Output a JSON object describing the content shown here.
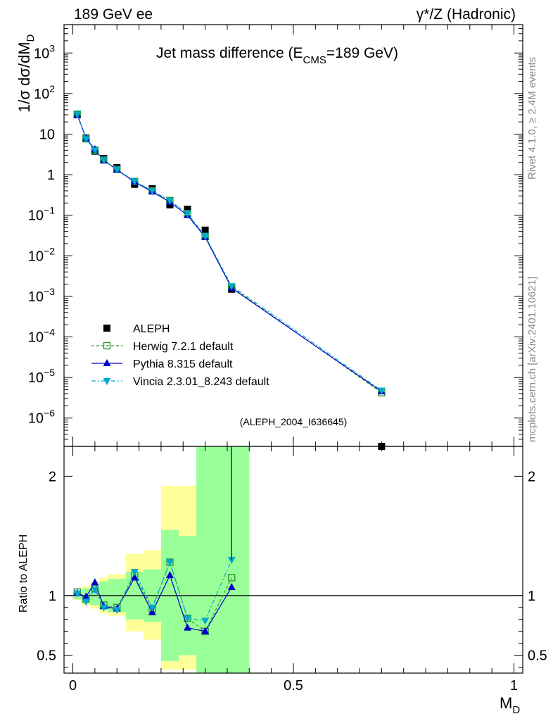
{
  "header": {
    "left": "189 GeV ee",
    "right": "γ*/Z (Hadronic)"
  },
  "side_labels": {
    "top": "Rivet 4.1.0, ≥ 2.4M events",
    "bottom": "mcplots.cern.ch [arXiv:2401.10621]"
  },
  "chart_data": [
    {
      "type": "line",
      "title": "Jet mass difference (E",
      "title_sub": "CMS",
      "title_end": "=189 GeV)",
      "ylabel": "1/σ  dσ/dM",
      "ylabel_sub": "D",
      "yscale": "log",
      "ylim": [
        2e-07,
        5000
      ],
      "xlim": [
        -0.02,
        1.02
      ],
      "yticks": [
        {
          "v": 1e-06,
          "base": "10",
          "exp": "−6"
        },
        {
          "v": 1e-05,
          "base": "10",
          "exp": "−5"
        },
        {
          "v": 0.0001,
          "base": "10",
          "exp": "−4"
        },
        {
          "v": 0.001,
          "base": "10",
          "exp": "−3"
        },
        {
          "v": 0.01,
          "base": "10",
          "exp": "−2"
        },
        {
          "v": 0.1,
          "base": "10",
          "exp": "−1"
        },
        {
          "v": 1,
          "base": "1",
          "exp": ""
        },
        {
          "v": 10,
          "base": "10",
          "exp": ""
        },
        {
          "v": 100,
          "base": "10",
          "exp": "2"
        },
        {
          "v": 1000,
          "base": "10",
          "exp": "3"
        }
      ],
      "x": [
        0.01,
        0.03,
        0.05,
        0.07,
        0.1,
        0.14,
        0.18,
        0.22,
        0.26,
        0.3,
        0.36,
        0.7
      ],
      "series": [
        {
          "name": "ALEPH",
          "values": [
            30,
            8.0,
            3.8,
            2.5,
            1.5,
            0.58,
            0.45,
            0.18,
            0.14,
            0.043,
            0.0015,
            2e-07
          ]
        },
        {
          "name": "Herwig 7.2.1 default",
          "values": [
            31,
            7.7,
            4.0,
            2.3,
            1.35,
            0.68,
            0.4,
            0.23,
            0.11,
            0.03,
            0.0017,
            4.2e-06
          ]
        },
        {
          "name": "Pythia 8.315 default",
          "values": [
            30,
            7.9,
            4.2,
            2.25,
            1.33,
            0.66,
            0.38,
            0.21,
            0.1,
            0.029,
            0.0016,
            4.5e-06
          ]
        },
        {
          "name": "Vincia 2.3.01_8.243 default",
          "values": [
            31,
            7.6,
            4.0,
            2.3,
            1.35,
            0.69,
            0.4,
            0.23,
            0.11,
            0.031,
            0.0018,
            4.8e-06
          ]
        }
      ],
      "watermark": "(ALEPH_2004_I636645)"
    },
    {
      "type": "line",
      "ylabel": "Ratio to ALEPH",
      "xlabel": "M",
      "xlabel_sub": "D",
      "ylim": [
        0.35,
        2.25
      ],
      "xlim": [
        -0.02,
        1.02
      ],
      "yticks": [
        "0.5",
        "1",
        "2"
      ],
      "ytick_values": [
        0.5,
        1,
        2
      ],
      "xticks": [
        "0",
        "0.5",
        "1"
      ],
      "xtick_values": [
        0,
        0.5,
        1
      ],
      "bins": [
        [
          0.0,
          0.02
        ],
        [
          0.02,
          0.04
        ],
        [
          0.04,
          0.06
        ],
        [
          0.06,
          0.08
        ],
        [
          0.08,
          0.12
        ],
        [
          0.12,
          0.16
        ],
        [
          0.16,
          0.2
        ],
        [
          0.2,
          0.24
        ],
        [
          0.24,
          0.28
        ],
        [
          0.28,
          0.32
        ],
        [
          0.32,
          0.4
        ]
      ],
      "band_inner": [
        [
          0.97,
          1.03
        ],
        [
          0.94,
          1.06
        ],
        [
          0.92,
          1.08
        ],
        [
          0.88,
          1.12
        ],
        [
          0.86,
          1.14
        ],
        [
          0.8,
          1.2
        ],
        [
          0.78,
          1.22
        ],
        [
          0.45,
          1.55
        ],
        [
          0.5,
          1.5
        ],
        [
          0.2,
          2.3
        ],
        [
          0.2,
          2.3
        ]
      ],
      "band_outer": [
        [
          0.96,
          1.04
        ],
        [
          0.92,
          1.08
        ],
        [
          0.89,
          1.12
        ],
        [
          0.85,
          1.15
        ],
        [
          0.83,
          1.18
        ],
        [
          0.7,
          1.35
        ],
        [
          0.63,
          1.38
        ],
        [
          0.38,
          1.92
        ],
        [
          0.38,
          1.92
        ],
        [
          0.2,
          2.3
        ],
        [
          0.2,
          2.3
        ]
      ],
      "x": [
        0.01,
        0.03,
        0.05,
        0.07,
        0.1,
        0.14,
        0.18,
        0.22,
        0.26,
        0.3,
        0.36
      ],
      "series": [
        {
          "name": "Herwig 7.2.1 default",
          "values": [
            1.03,
            0.97,
            1.06,
            0.92,
            0.9,
            1.17,
            0.89,
            1.28,
            0.81,
            0.7,
            1.15
          ]
        },
        {
          "name": "Pythia 8.315 default",
          "values": [
            1.02,
            0.99,
            1.11,
            0.91,
            0.89,
            1.15,
            0.86,
            1.17,
            0.73,
            0.7,
            1.07
          ]
        },
        {
          "name": "Vincia 2.3.01_8.243 default",
          "values": [
            1.02,
            0.95,
            1.05,
            0.9,
            0.88,
            1.2,
            0.9,
            1.28,
            0.81,
            0.79,
            1.3
          ]
        }
      ]
    }
  ],
  "colors": {
    "data": "#000000",
    "herwig": "#339933",
    "pythia": "#0000cc",
    "vincia": "#00aacc",
    "band_inner": "#99ff99",
    "band_outer": "#ffff99",
    "watermark": "#aaaaaa"
  }
}
